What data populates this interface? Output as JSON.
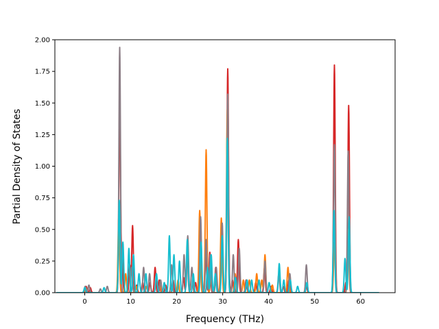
{
  "chart_data": {
    "type": "line",
    "title": "",
    "xlabel": "Frequency (THz)",
    "ylabel": "Partial Density of States",
    "xlim": [
      -6.5,
      67.5
    ],
    "ylim": [
      0,
      2.0
    ],
    "xticks": [
      0,
      10,
      20,
      30,
      40,
      50,
      60
    ],
    "yticks": [
      0.0,
      0.25,
      0.5,
      0.75,
      1.0,
      1.25,
      1.5,
      1.75,
      2.0
    ],
    "ytick_labels": [
      "0.00",
      "0.25",
      "0.50",
      "0.75",
      "1.00",
      "1.25",
      "1.50",
      "1.75",
      "2.00"
    ],
    "grid": false,
    "legend": false,
    "x_range": [
      -6.2,
      64.0
    ],
    "series": [
      {
        "color": "#d62728",
        "peaks": [
          [
            0.3,
            0.05
          ],
          [
            1.2,
            0.04
          ],
          [
            7.6,
            1.55
          ],
          [
            8.1,
            0.3
          ],
          [
            9.8,
            0.22
          ],
          [
            10.4,
            0.53
          ],
          [
            11.3,
            0.06
          ],
          [
            12.6,
            0.08
          ],
          [
            14.2,
            0.08
          ],
          [
            15.3,
            0.2
          ],
          [
            16.2,
            0.1
          ],
          [
            17.6,
            0.06
          ],
          [
            19.2,
            0.1
          ],
          [
            21.5,
            0.12
          ],
          [
            22.3,
            0.3
          ],
          [
            24.1,
            0.08
          ],
          [
            25.1,
            0.35
          ],
          [
            26.3,
            0.35
          ],
          [
            27.2,
            0.32
          ],
          [
            28.5,
            0.2
          ],
          [
            29.8,
            0.45
          ],
          [
            31.1,
            1.77
          ],
          [
            32.1,
            0.1
          ],
          [
            33.4,
            0.42
          ],
          [
            35.1,
            0.1
          ],
          [
            37.2,
            0.08
          ],
          [
            39.1,
            0.2
          ],
          [
            40.5,
            0.05
          ],
          [
            43.2,
            0.05
          ],
          [
            44.4,
            0.1
          ],
          [
            48.2,
            0.05
          ],
          [
            54.3,
            1.8
          ],
          [
            56.8,
            0.08
          ],
          [
            57.4,
            1.48
          ]
        ]
      },
      {
        "color": "#ff7f0e",
        "peaks": [
          [
            0.2,
            0.04
          ],
          [
            7.4,
            0.6
          ],
          [
            8.9,
            0.15
          ],
          [
            11.2,
            0.05
          ],
          [
            13.4,
            0.05
          ],
          [
            16.4,
            0.05
          ],
          [
            20.3,
            0.1
          ],
          [
            25.0,
            0.65
          ],
          [
            26.4,
            1.13
          ],
          [
            27.5,
            0.2
          ],
          [
            29.7,
            0.59
          ],
          [
            31.0,
            1.45
          ],
          [
            32.7,
            0.15
          ],
          [
            34.5,
            0.1
          ],
          [
            35.8,
            0.1
          ],
          [
            37.4,
            0.15
          ],
          [
            38.5,
            0.1
          ],
          [
            39.2,
            0.3
          ],
          [
            40.8,
            0.06
          ],
          [
            44.2,
            0.2
          ],
          [
            54.3,
            0.4
          ],
          [
            57.3,
            0.5
          ]
        ]
      },
      {
        "color": "#8c7e86",
        "peaks": [
          [
            0.1,
            0.05
          ],
          [
            0.9,
            0.06
          ],
          [
            3.4,
            0.03
          ],
          [
            4.9,
            0.05
          ],
          [
            7.6,
            1.94
          ],
          [
            10.2,
            0.2
          ],
          [
            12.8,
            0.2
          ],
          [
            14.1,
            0.15
          ],
          [
            16.5,
            0.1
          ],
          [
            18.9,
            0.22
          ],
          [
            21.6,
            0.3
          ],
          [
            22.4,
            0.45
          ],
          [
            23.3,
            0.2
          ],
          [
            25.2,
            0.6
          ],
          [
            26.4,
            0.42
          ],
          [
            27.3,
            0.3
          ],
          [
            28.6,
            0.2
          ],
          [
            29.9,
            0.55
          ],
          [
            31.1,
            1.57
          ],
          [
            32.3,
            0.3
          ],
          [
            33.6,
            0.35
          ],
          [
            35.2,
            0.1
          ],
          [
            39.2,
            0.25
          ],
          [
            42.2,
            0.15
          ],
          [
            44.6,
            0.15
          ],
          [
            48.2,
            0.22
          ],
          [
            54.3,
            1.17
          ],
          [
            57.3,
            1.12
          ]
        ]
      },
      {
        "color": "#17becf",
        "peaks": [
          [
            0.0,
            0.04
          ],
          [
            4.2,
            0.04
          ],
          [
            7.5,
            0.73
          ],
          [
            8.3,
            0.4
          ],
          [
            9.6,
            0.35
          ],
          [
            10.6,
            0.3
          ],
          [
            11.8,
            0.15
          ],
          [
            13.3,
            0.15
          ],
          [
            15.6,
            0.15
          ],
          [
            17.3,
            0.08
          ],
          [
            18.4,
            0.45
          ],
          [
            19.4,
            0.3
          ],
          [
            20.6,
            0.25
          ],
          [
            22.3,
            0.42
          ],
          [
            23.6,
            0.15
          ],
          [
            25.3,
            0.4
          ],
          [
            26.7,
            0.2
          ],
          [
            27.5,
            0.3
          ],
          [
            28.4,
            0.15
          ],
          [
            29.9,
            0.45
          ],
          [
            31.0,
            1.22
          ],
          [
            32.8,
            0.12
          ],
          [
            35.3,
            0.1
          ],
          [
            36.3,
            0.1
          ],
          [
            37.9,
            0.1
          ],
          [
            40.1,
            0.08
          ],
          [
            42.3,
            0.23
          ],
          [
            43.3,
            0.1
          ],
          [
            44.7,
            0.1
          ],
          [
            46.3,
            0.05
          ],
          [
            48.3,
            0.08
          ],
          [
            54.2,
            0.65
          ],
          [
            56.6,
            0.27
          ],
          [
            57.5,
            0.6
          ]
        ]
      }
    ]
  }
}
